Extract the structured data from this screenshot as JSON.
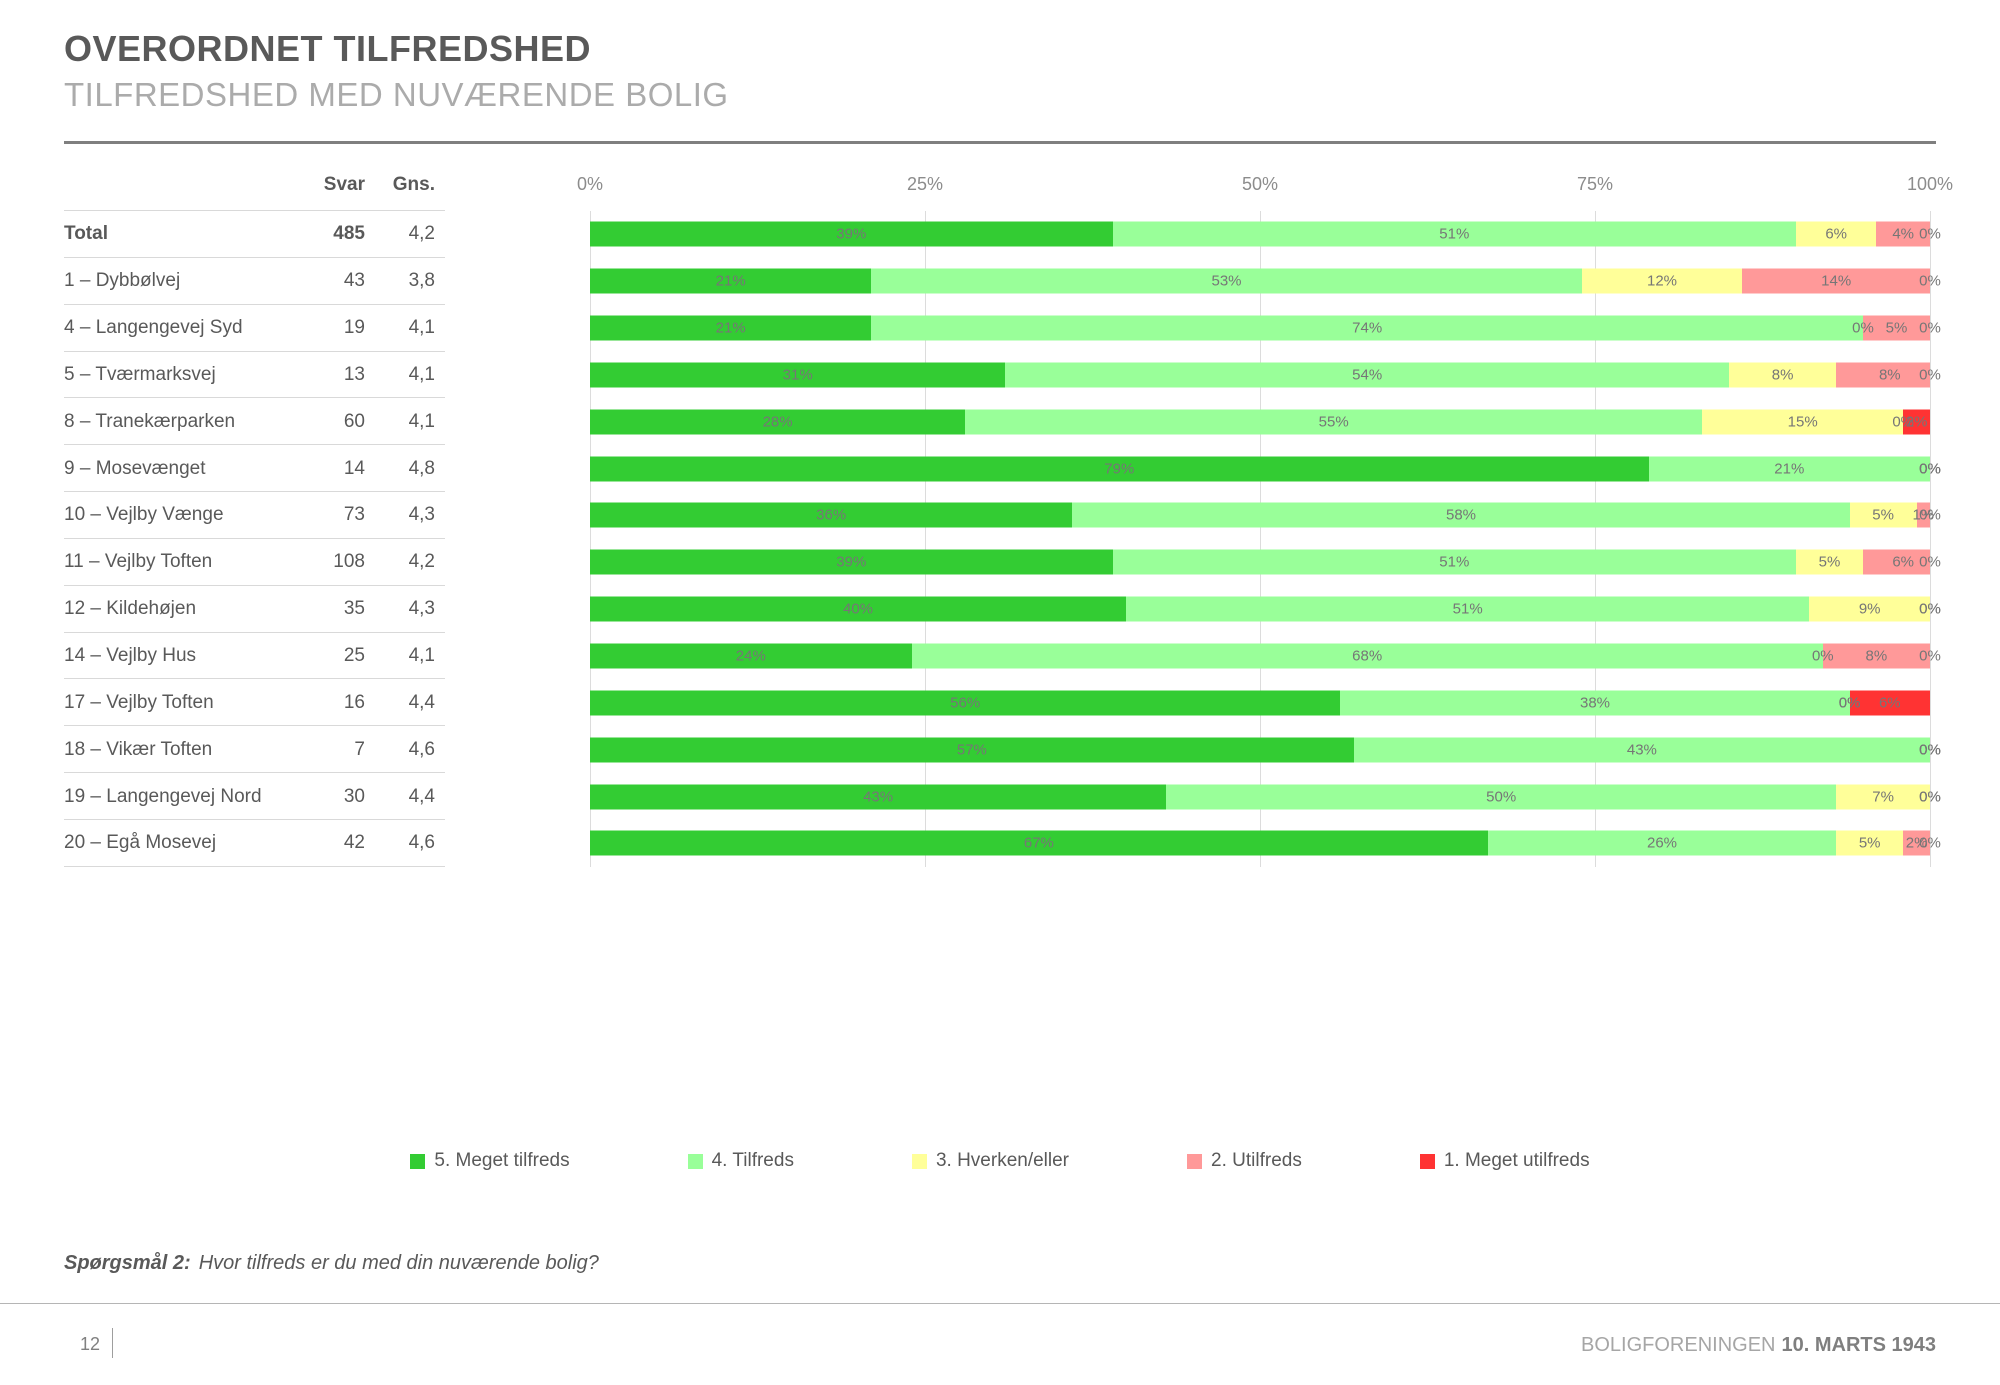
{
  "header": {
    "title": "OVERORDNET TILFREDSHED",
    "subtitle": "TILFREDSHED MED NUVÆRENDE BOLIG"
  },
  "table": {
    "col_responses": "Svar",
    "col_average": "Gns."
  },
  "axis": {
    "ticks": [
      "0%",
      "25%",
      "50%",
      "75%",
      "100%"
    ]
  },
  "legend": [
    {
      "label": "5. Meget tilfreds",
      "color": "#33cc33"
    },
    {
      "label": "4. Tilfreds",
      "color": "#99ff99"
    },
    {
      "label": "3. Hverken/eller",
      "color": "#ffff99"
    },
    {
      "label": "2. Utilfreds",
      "color": "#ff9999"
    },
    {
      "label": "1. Meget utilfreds",
      "color": "#ff3333"
    }
  ],
  "chart_data": {
    "type": "bar",
    "orientation": "horizontal",
    "stacked": true,
    "xlim": [
      0,
      100
    ],
    "grid": true,
    "legend_position": "bottom",
    "categories": [
      "Total",
      "1 – Dybbølvej",
      "4 – Langengevej Syd",
      "5 – Tværmarksvej",
      "8 – Tranekærparken",
      "9 – Mosevænget",
      "10 – Vejlby Vænge",
      "11 – Vejlby Toften",
      "12 – Kildehøjen",
      "14 – Vejlby Hus",
      "17 – Vejlby Toften",
      "18 – Vikær Toften",
      "19 – Langengevej Nord",
      "20 – Egå Mosevej"
    ],
    "responses": [
      485,
      43,
      19,
      13,
      60,
      14,
      73,
      108,
      35,
      25,
      16,
      7,
      30,
      42
    ],
    "averages": [
      "4,2",
      "3,8",
      "4,1",
      "4,1",
      "4,1",
      "4,8",
      "4,3",
      "4,2",
      "4,3",
      "4,1",
      "4,4",
      "4,6",
      "4,4",
      "4,6"
    ],
    "series": [
      {
        "name": "5. Meget tilfreds",
        "values": [
          39,
          21,
          21,
          31,
          28,
          79,
          36,
          39,
          40,
          24,
          56,
          57,
          43,
          67
        ]
      },
      {
        "name": "4. Tilfreds",
        "values": [
          51,
          53,
          74,
          54,
          55,
          21,
          58,
          51,
          51,
          68,
          38,
          43,
          50,
          26
        ]
      },
      {
        "name": "3. Hverken/eller",
        "values": [
          6,
          12,
          0,
          8,
          15,
          0,
          5,
          5,
          9,
          0,
          0,
          0,
          7,
          5
        ]
      },
      {
        "name": "2. Utilfreds",
        "values": [
          4,
          14,
          5,
          8,
          0,
          0,
          1,
          6,
          0,
          8,
          0,
          0,
          0,
          2
        ]
      },
      {
        "name": "1. Meget utilfreds",
        "values": [
          0,
          0,
          0,
          0,
          2,
          0,
          0,
          0,
          0,
          0,
          6,
          0,
          0,
          0
        ]
      }
    ],
    "rows": [
      {
        "label": "Total",
        "bold": true,
        "svar": "485",
        "gns": "4,2",
        "widths": [
          39,
          51,
          6,
          4,
          0.4
        ],
        "labels": [
          "39%",
          "51%",
          "6%",
          "4%",
          "0%"
        ]
      },
      {
        "label": "1 – Dybbølvej",
        "bold": false,
        "svar": "43",
        "gns": "3,8",
        "widths": [
          21,
          53,
          12,
          14,
          0
        ],
        "labels": [
          "21%",
          "53%",
          "12%",
          "14%",
          "0%"
        ]
      },
      {
        "label": "4 – Langengevej Syd",
        "bold": false,
        "svar": "19",
        "gns": "4,1",
        "widths": [
          21,
          74,
          0,
          5,
          0
        ],
        "labels": [
          "21%",
          "74%",
          "0%",
          "5%",
          "0%"
        ]
      },
      {
        "label": "5 – Tværmarksvej",
        "bold": false,
        "svar": "13",
        "gns": "4,1",
        "widths": [
          31,
          54,
          8,
          8,
          0
        ],
        "labels": [
          "31%",
          "54%",
          "8%",
          "8%",
          "0%"
        ]
      },
      {
        "label": "8 – Tranekærparken",
        "bold": false,
        "svar": "60",
        "gns": "4,1",
        "widths": [
          28,
          55,
          15,
          0,
          2
        ],
        "labels": [
          "28%",
          "55%",
          "15%",
          "0%",
          "2%"
        ]
      },
      {
        "label": "9 – Mosevænget",
        "bold": false,
        "svar": "14",
        "gns": "4,8",
        "widths": [
          79,
          21,
          0,
          0,
          0
        ],
        "labels": [
          "79%",
          "21%",
          "0%",
          "0%",
          "0%"
        ]
      },
      {
        "label": "10 – Vejlby Vænge",
        "bold": false,
        "svar": "73",
        "gns": "4,3",
        "widths": [
          36,
          58,
          5,
          1,
          0
        ],
        "labels": [
          "36%",
          "58%",
          "5%",
          "1%",
          "0%"
        ]
      },
      {
        "label": "11 – Vejlby Toften",
        "bold": false,
        "svar": "108",
        "gns": "4,2",
        "widths": [
          39,
          51,
          5,
          6,
          0
        ],
        "labels": [
          "39%",
          "51%",
          "5%",
          "6%",
          "0%"
        ]
      },
      {
        "label": "12 – Kildehøjen",
        "bold": false,
        "svar": "35",
        "gns": "4,3",
        "widths": [
          40,
          51,
          9,
          0,
          0
        ],
        "labels": [
          "40%",
          "51%",
          "9%",
          "0%",
          "0%"
        ]
      },
      {
        "label": "14 – Vejlby Hus",
        "bold": false,
        "svar": "25",
        "gns": "4,1",
        "widths": [
          24,
          68,
          0,
          8,
          0
        ],
        "labels": [
          "24%",
          "68%",
          "0%",
          "8%",
          "0%"
        ]
      },
      {
        "label": "17 – Vejlby Toften",
        "bold": false,
        "svar": "16",
        "gns": "4,4",
        "widths": [
          56,
          38,
          0,
          0,
          6
        ],
        "labels": [
          "56%",
          "38%",
          "0%",
          "0%",
          "6%"
        ]
      },
      {
        "label": "18 – Vikær Toften",
        "bold": false,
        "svar": "7",
        "gns": "4,6",
        "widths": [
          57,
          43,
          0,
          0,
          0
        ],
        "labels": [
          "57%",
          "43%",
          "0%",
          "0%",
          "0%"
        ]
      },
      {
        "label": "19 – Langengevej Nord",
        "bold": false,
        "svar": "30",
        "gns": "4,4",
        "widths": [
          43,
          50,
          7,
          0,
          0
        ],
        "labels": [
          "43%",
          "50%",
          "7%",
          "0%",
          "0%"
        ]
      },
      {
        "label": "20 – Egå Mosevej",
        "bold": false,
        "svar": "42",
        "gns": "4,6",
        "widths": [
          67,
          26,
          5,
          2,
          0
        ],
        "labels": [
          "67%",
          "26%",
          "5%",
          "2%",
          "0%"
        ]
      }
    ]
  },
  "question": {
    "prefix": "Spørgsmål 2:",
    "text": "Hvor tilfreds er du med din nuværende bolig?"
  },
  "footer": {
    "page_number": "12",
    "org": "BOLIGFORENINGEN",
    "date": "10. MARTS 1943"
  }
}
